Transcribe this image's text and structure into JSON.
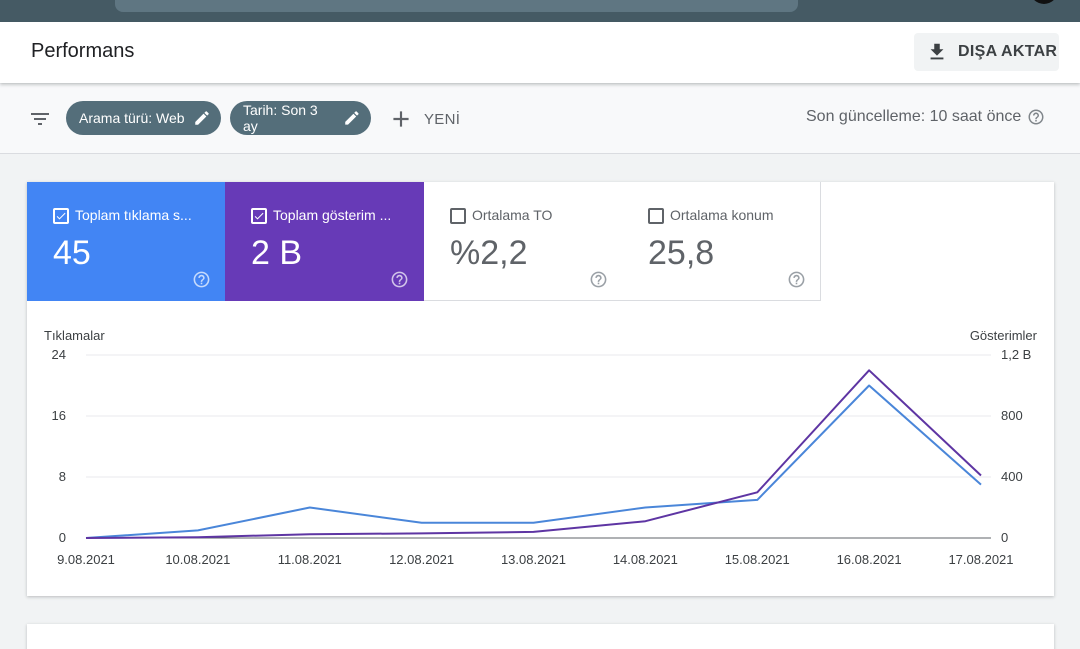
{
  "header": {
    "title": "Performans",
    "export_label": "DIŞA AKTAR"
  },
  "filters": {
    "chips": [
      {
        "label": "Arama türü: Web"
      },
      {
        "label": "Tarih: Son 3 ay"
      }
    ],
    "new_label": "YENİ",
    "last_update": "Son güncelleme: 10 saat önce"
  },
  "metrics": [
    {
      "label": "Toplam tıklama s...",
      "value": "45",
      "checked": true,
      "color": "#4285f4"
    },
    {
      "label": "Toplam gösterim ...",
      "value": "2 B",
      "checked": true,
      "color": "#673ab7"
    },
    {
      "label": "Ortalama TO",
      "value": "%2,2",
      "checked": false
    },
    {
      "label": "Ortalama konum",
      "value": "25,8",
      "checked": false
    }
  ],
  "chart_data": {
    "type": "line",
    "x": [
      "9.08.2021",
      "10.08.2021",
      "11.08.2021",
      "12.08.2021",
      "13.08.2021",
      "14.08.2021",
      "15.08.2021",
      "16.08.2021",
      "17.08.2021"
    ],
    "left_axis": {
      "label": "Tıklamalar",
      "ticks": [
        "0",
        "8",
        "16",
        "24"
      ],
      "ylim": [
        0,
        24
      ]
    },
    "right_axis": {
      "label": "Gösterimler",
      "ticks": [
        "0",
        "400",
        "800",
        "1,2 B"
      ],
      "ylim": [
        0,
        1200
      ]
    },
    "series": [
      {
        "name": "Toplam tıklama s...",
        "axis": "left",
        "color": "#4a86d9",
        "values": [
          0,
          1,
          4,
          2,
          2,
          4,
          5,
          20,
          7
        ]
      },
      {
        "name": "Toplam gösterim ...",
        "axis": "right",
        "color": "#5e35a3",
        "values": [
          0,
          5,
          25,
          30,
          40,
          110,
          300,
          1100,
          410
        ]
      }
    ],
    "grid": true
  }
}
